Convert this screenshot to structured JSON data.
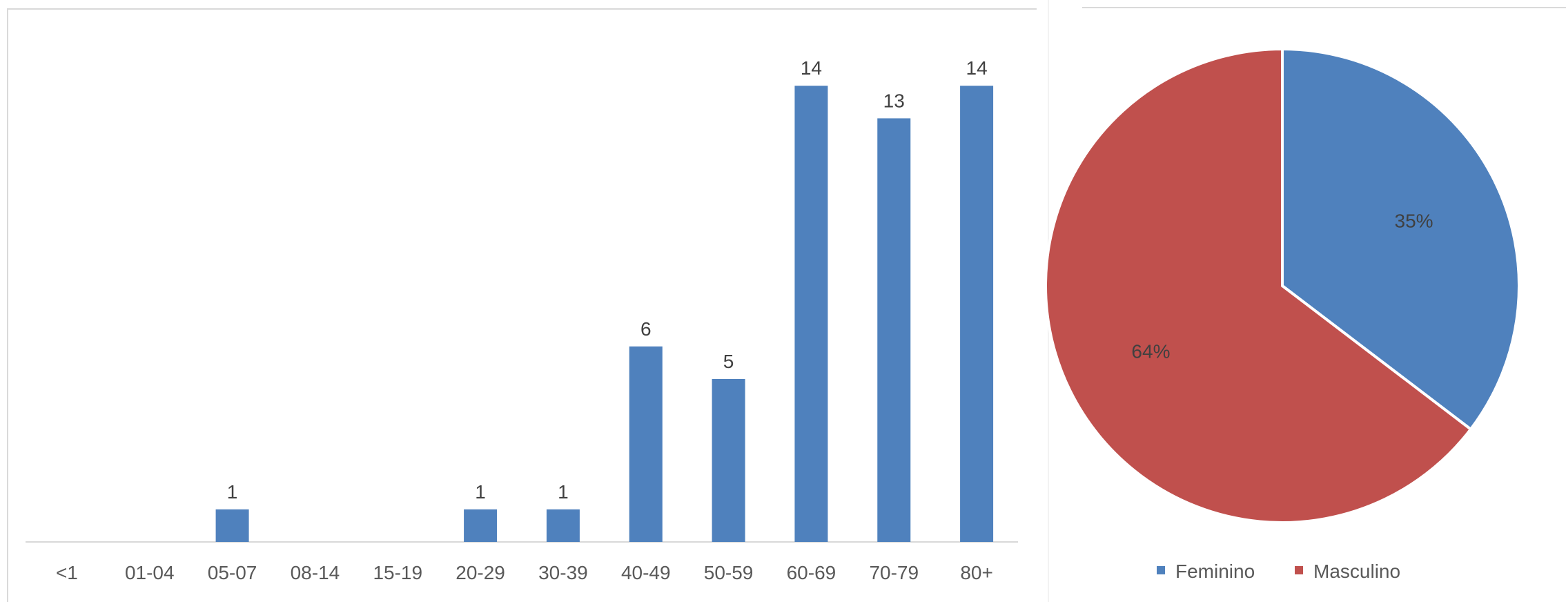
{
  "chart_data": [
    {
      "type": "bar",
      "categories": [
        "<1",
        "01-04",
        "05-07",
        "08-14",
        "15-19",
        "20-29",
        "30-39",
        "40-49",
        "50-59",
        "60-69",
        "70-79",
        "80+"
      ],
      "values": [
        0,
        0,
        1,
        0,
        0,
        1,
        1,
        6,
        5,
        14,
        13,
        14
      ],
      "data_labels": [
        "",
        "",
        "1",
        "",
        "",
        "1",
        "1",
        "6",
        "5",
        "14",
        "13",
        "14"
      ],
      "color": "#4f81bd",
      "ylim": [
        0,
        15
      ],
      "grid": false,
      "legend": false
    },
    {
      "type": "pie",
      "labels": [
        "Feminino",
        "Masculino"
      ],
      "values": [
        35,
        64
      ],
      "data_labels": [
        "35%",
        "64%"
      ],
      "colors": [
        "#4f81bd",
        "#c0504d"
      ],
      "legend_position": "bottom",
      "legend": [
        "Feminino",
        "Masculino"
      ]
    }
  ]
}
